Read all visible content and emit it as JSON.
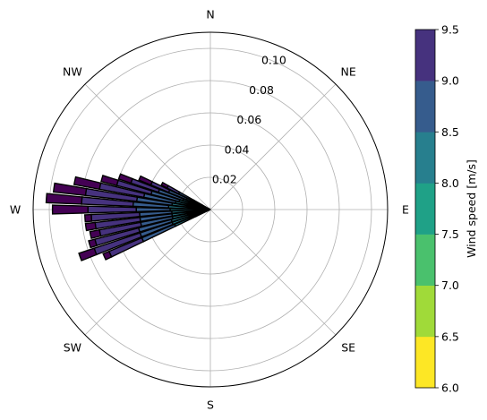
{
  "chart_data": {
    "type": "polar-stacked-bar",
    "title": "",
    "directions": [
      "N",
      "NE",
      "E",
      "SE",
      "S",
      "SW",
      "W",
      "NW"
    ],
    "radial_ticks": [
      "0.02",
      "0.04",
      "0.06",
      "0.08",
      "0.10"
    ],
    "radial_tick_values": [
      0.02,
      0.04,
      0.06,
      0.08,
      0.1
    ],
    "rmax": 0.11,
    "grid": true,
    "edgecolor": "#000000",
    "colorbar": {
      "label": "Wind speed [m/s]",
      "bounds": [
        6.0,
        6.5,
        7.0,
        7.5,
        8.0,
        8.5,
        9.0,
        9.5
      ],
      "tick_labels": [
        "6.0",
        "6.5",
        "7.0",
        "7.5",
        "8.0",
        "8.5",
        "9.0",
        "9.5"
      ],
      "colors": [
        "#fde725",
        "#a0da39",
        "#4ac16d",
        "#1fa187",
        "#277f8e",
        "#365c8d",
        "#46327e",
        "#440154"
      ],
      "position": "right"
    },
    "bins_speed_upper": [
      6.5,
      7.0,
      7.5,
      8.0,
      8.5,
      9.0,
      9.5
    ],
    "sectors": [
      {
        "direction_deg": 246,
        "cumulative_frequency": [
          0.0,
          0.002,
          0.01,
          0.024,
          0.046,
          0.068,
          0.072
        ]
      },
      {
        "direction_deg": 250,
        "cumulative_frequency": [
          0.0,
          0.002,
          0.01,
          0.025,
          0.046,
          0.076,
          0.086
        ]
      },
      {
        "direction_deg": 254,
        "cumulative_frequency": [
          0.0,
          0.002,
          0.01,
          0.025,
          0.046,
          0.074,
          0.078
        ]
      },
      {
        "direction_deg": 258,
        "cumulative_frequency": [
          0.0,
          0.002,
          0.01,
          0.024,
          0.044,
          0.07,
          0.076
        ]
      },
      {
        "direction_deg": 262,
        "cumulative_frequency": [
          0.0,
          0.002,
          0.01,
          0.024,
          0.044,
          0.072,
          0.078
        ]
      },
      {
        "direction_deg": 266,
        "cumulative_frequency": [
          0.0,
          0.002,
          0.01,
          0.024,
          0.044,
          0.074,
          0.078
        ]
      },
      {
        "direction_deg": 270,
        "cumulative_frequency": [
          0.0,
          0.002,
          0.01,
          0.025,
          0.046,
          0.076,
          0.098
        ]
      },
      {
        "direction_deg": 274,
        "cumulative_frequency": [
          0.0,
          0.002,
          0.011,
          0.026,
          0.048,
          0.08,
          0.102
        ]
      },
      {
        "direction_deg": 278,
        "cumulative_frequency": [
          0.0,
          0.002,
          0.01,
          0.024,
          0.046,
          0.078,
          0.098
        ]
      },
      {
        "direction_deg": 282,
        "cumulative_frequency": [
          0.0,
          0.002,
          0.01,
          0.022,
          0.042,
          0.07,
          0.086
        ]
      },
      {
        "direction_deg": 286,
        "cumulative_frequency": [
          0.0,
          0.002,
          0.009,
          0.02,
          0.038,
          0.06,
          0.07
        ]
      },
      {
        "direction_deg": 290,
        "cumulative_frequency": [
          0.0,
          0.002,
          0.008,
          0.018,
          0.034,
          0.052,
          0.06
        ]
      },
      {
        "direction_deg": 294,
        "cumulative_frequency": [
          0.0,
          0.002,
          0.008,
          0.016,
          0.028,
          0.04,
          0.048
        ]
      },
      {
        "direction_deg": 298,
        "cumulative_frequency": [
          0.0,
          0.001,
          0.006,
          0.012,
          0.022,
          0.03,
          0.034
        ]
      }
    ]
  }
}
